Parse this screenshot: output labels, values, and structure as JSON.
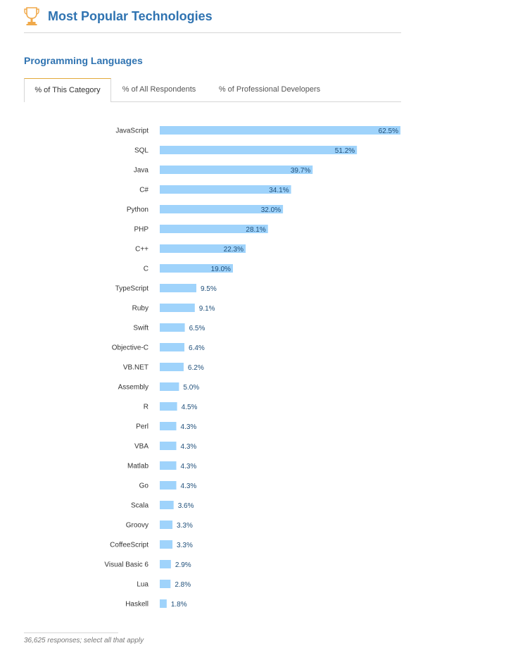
{
  "header": {
    "title": "Most Popular Technologies",
    "icon": "trophy-icon",
    "icon_color": "#f0a94a"
  },
  "section": {
    "title": "Programming Languages"
  },
  "tabs": [
    {
      "label": "% of This Category",
      "active": true
    },
    {
      "label": "% of All Respondents",
      "active": false
    },
    {
      "label": "% of Professional Developers",
      "active": false
    }
  ],
  "chart_data": {
    "type": "bar",
    "orientation": "horizontal",
    "categories": [
      "JavaScript",
      "SQL",
      "Java",
      "C#",
      "Python",
      "PHP",
      "C++",
      "C",
      "TypeScript",
      "Ruby",
      "Swift",
      "Objective-C",
      "VB.NET",
      "Assembly",
      "R",
      "Perl",
      "VBA",
      "Matlab",
      "Go",
      "Scala",
      "Groovy",
      "CoffeeScript",
      "Visual Basic 6",
      "Lua",
      "Haskell"
    ],
    "values": [
      62.5,
      51.2,
      39.7,
      34.1,
      32.0,
      28.1,
      22.3,
      19.0,
      9.5,
      9.1,
      6.5,
      6.4,
      6.2,
      5.0,
      4.5,
      4.3,
      4.3,
      4.3,
      4.3,
      3.6,
      3.3,
      3.3,
      2.9,
      2.8,
      1.8
    ],
    "value_labels": [
      "62.5%",
      "51.2%",
      "39.7%",
      "34.1%",
      "32.0%",
      "28.1%",
      "22.3%",
      "19.0%",
      "9.5%",
      "9.1%",
      "6.5%",
      "6.4%",
      "6.2%",
      "5.0%",
      "4.5%",
      "4.3%",
      "4.3%",
      "4.3%",
      "4.3%",
      "3.6%",
      "3.3%",
      "3.3%",
      "2.9%",
      "2.8%",
      "1.8%"
    ],
    "xlim": [
      0,
      62.5
    ],
    "bar_color": "#9fd3fb",
    "label_color": "#1f4f7a",
    "grid": false
  },
  "footnote": "36,625 responses; select all that apply"
}
